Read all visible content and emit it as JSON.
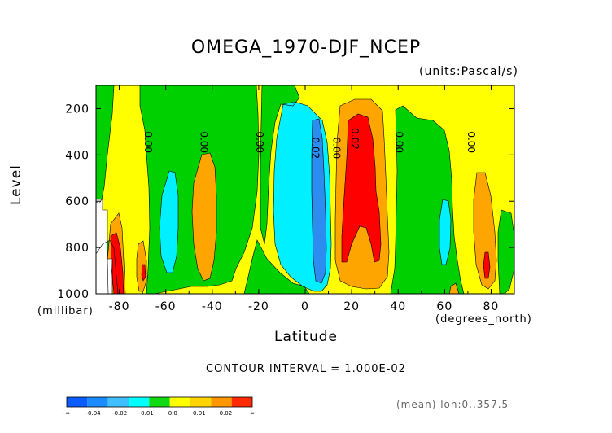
{
  "chart_data": {
    "type": "contour",
    "title": "OMEGA_1970-DJF_NCEP",
    "units_label": "(units:Pascal/s)",
    "xlabel": "Latitude",
    "x_units": "(degrees_north)",
    "ylabel": "Level",
    "y_units": "(millibar)",
    "xlim": [
      -90,
      90
    ],
    "ylim": [
      1000,
      100
    ],
    "x_ticks": [
      "-80",
      "-60",
      "-40",
      "-20",
      "0",
      "20",
      "40",
      "60",
      "80"
    ],
    "y_ticks": [
      "200",
      "400",
      "600",
      "800",
      "1000"
    ],
    "contour_interval_label": "CONTOUR INTERVAL = 1.000E-02",
    "footer_label": "(mean) lon:0..357.5",
    "contour_labels": [
      {
        "text": "0.00",
        "x": -69,
        "y": 345
      },
      {
        "text": "0.00",
        "x": -45,
        "y": 345
      },
      {
        "text": "0.00",
        "x": -21,
        "y": 345
      },
      {
        "text": "0.02",
        "x": 3,
        "y": 370
      },
      {
        "text": "0.00",
        "x": 12,
        "y": 370
      },
      {
        "text": "0.02",
        "x": 20,
        "y": 330
      },
      {
        "text": "0.00",
        "x": 39,
        "y": 345
      },
      {
        "text": "0.00",
        "x": 70,
        "y": 345
      }
    ],
    "colorbar": {
      "colors": [
        "#0a5cff",
        "#1a8cff",
        "#3fbfff",
        "#00ffff",
        "#11d912",
        "#ffff00",
        "#ffd400",
        "#ff9800",
        "#ff2a00"
      ],
      "labels": [
        "-∞",
        "-0.04",
        "-0.02",
        "-0.01",
        "0.0",
        "0.01",
        "0.02",
        "∞"
      ]
    },
    "fill_colors": {
      "n3": "#2d8cf0",
      "n2": "#00f0ff",
      "n1": "#00d000",
      "p0": "#ffff00",
      "p1": "#ffa500",
      "p2": "#ff0000",
      "missing": "#ffffff"
    }
  }
}
